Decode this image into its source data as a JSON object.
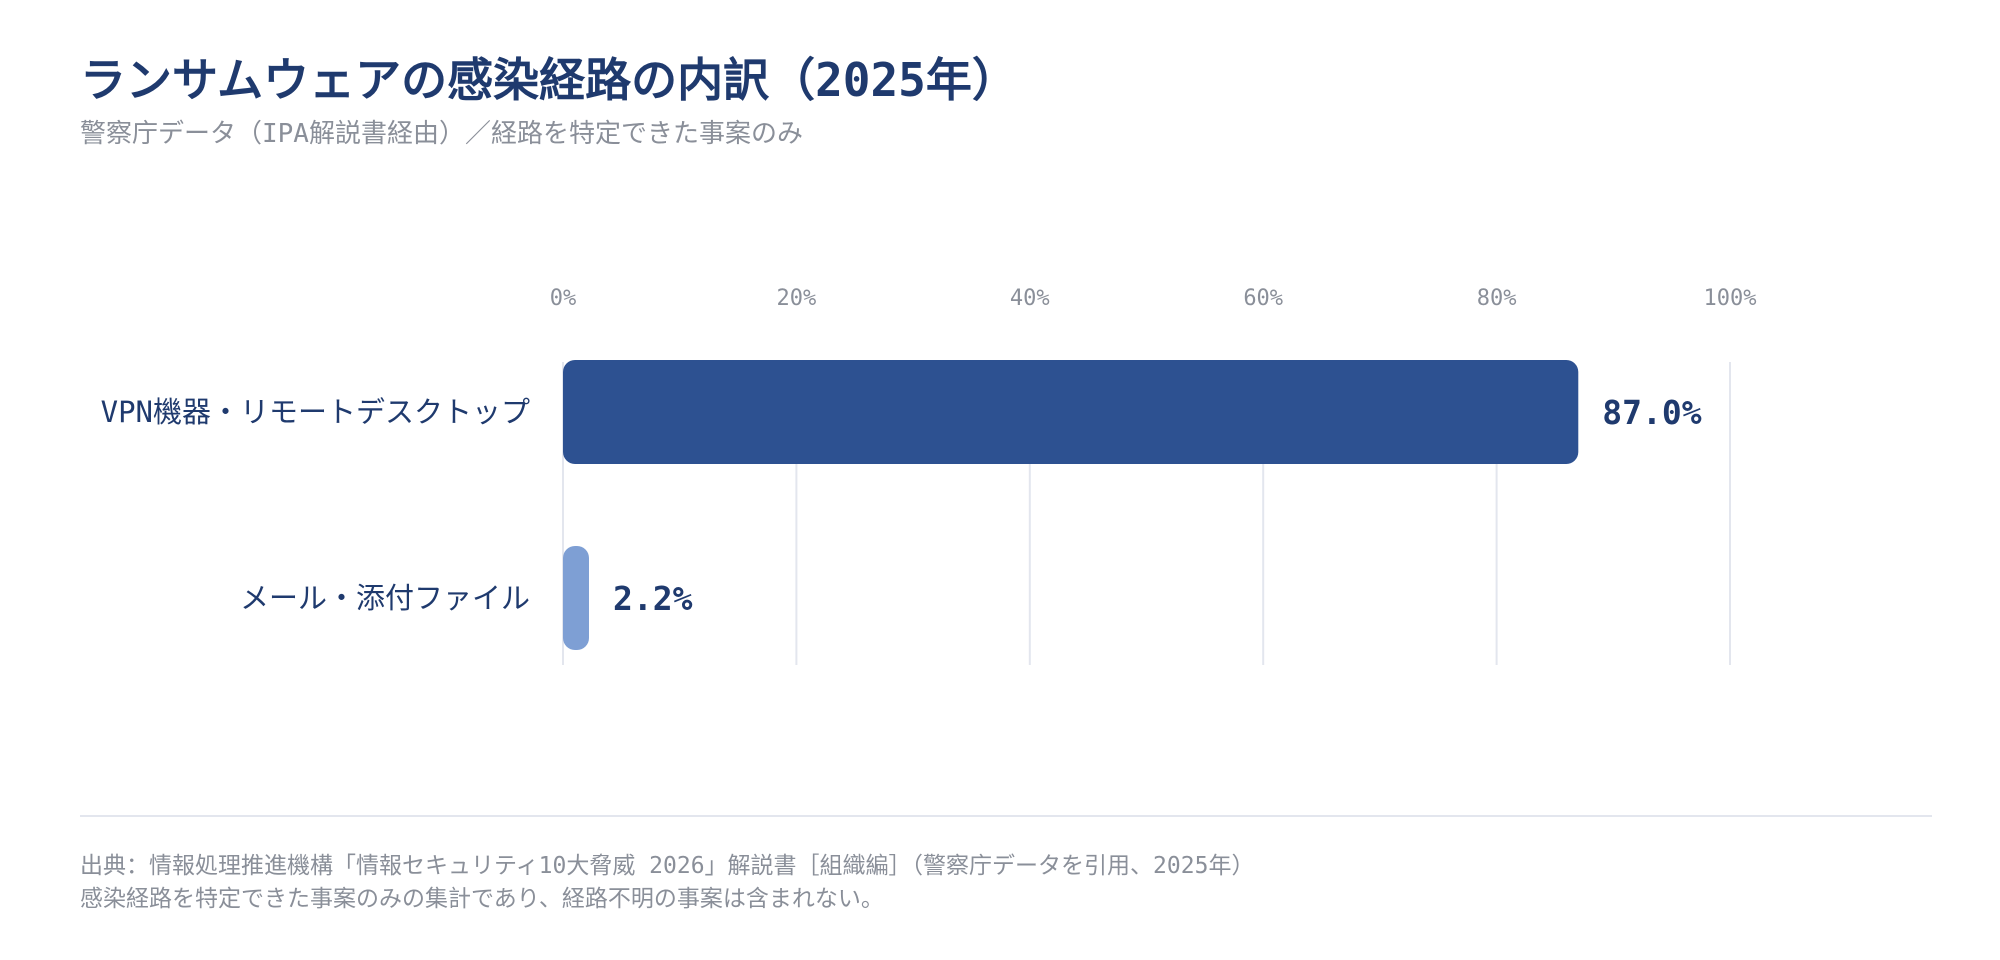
{
  "header": {
    "title": "ランサムウェアの感染経路の内訳（2025年）",
    "subtitle": "警察庁データ（IPA解説書経由）／経路を特定できた事案のみ"
  },
  "chart_data": {
    "type": "bar",
    "orientation": "horizontal",
    "categories": [
      "VPN機器・リモートデスクトップ",
      "メール・添付ファイル"
    ],
    "values": [
      87.0,
      2.2
    ],
    "value_labels": [
      "87.0%",
      "2.2%"
    ],
    "bar_colors": [
      "#2d5191",
      "#7e9fd4"
    ],
    "xlim": [
      0,
      100
    ],
    "x_ticks": [
      0,
      20,
      40,
      60,
      80,
      100
    ],
    "x_tick_labels": [
      "0%",
      "20%",
      "40%",
      "60%",
      "80%",
      "100%"
    ],
    "x_axis_position": "top",
    "grid": true
  },
  "footer": {
    "source_line1": "出典：情報処理推進機構「情報セキュリティ10大脅威 2026」解説書［組織編］（警察庁データを引用、2025年）",
    "source_line2": "感染経路を特定できた事案のみの集計であり、経路不明の事案は含まれない。"
  },
  "colors": {
    "title": "#1f3a6e",
    "muted_text": "#8a8f99",
    "grid": "#e3e6ee"
  }
}
